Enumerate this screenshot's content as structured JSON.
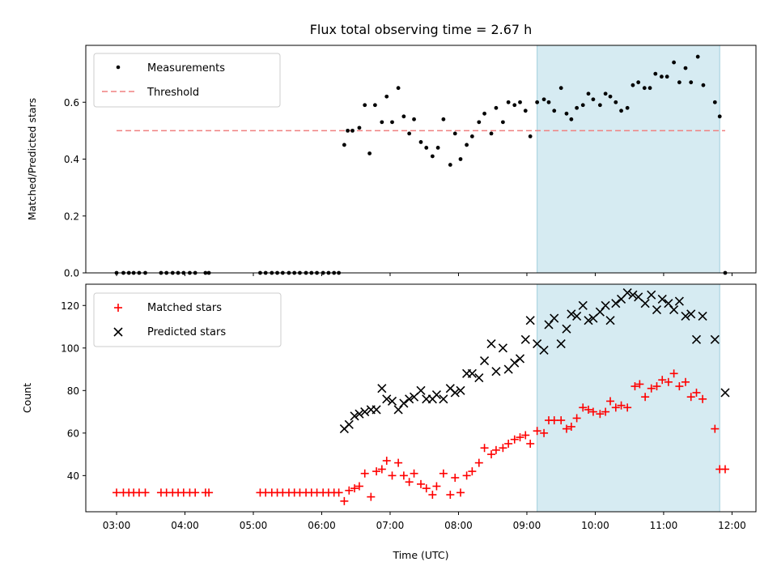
{
  "chart_data": [
    {
      "type": "scatter",
      "title": "Flux total observing time = 2.67 h",
      "xlabel": "",
      "ylabel": "Matched/Predicted stars",
      "ylim": [
        0,
        0.8
      ],
      "yticks": [
        0.0,
        0.2,
        0.4,
        0.6
      ],
      "ytick_labels": [
        "0.0",
        "0.2",
        "0.4",
        "0.6"
      ],
      "x_unit": "hours UTC",
      "xlim": [
        2.55,
        12.35
      ],
      "grid": false,
      "legend_position": "top-left",
      "highlight_span": [
        9.15,
        11.82
      ],
      "threshold": {
        "name": "Threshold",
        "value": 0.5,
        "x_range": [
          3.0,
          11.9
        ],
        "color": "#f08080"
      },
      "series": [
        {
          "name": "Measurements",
          "color": "#000000",
          "marker": "dot",
          "points": [
            [
              3.0,
              0
            ],
            [
              3.1,
              0
            ],
            [
              3.18,
              0
            ],
            [
              3.25,
              0
            ],
            [
              3.33,
              0
            ],
            [
              3.42,
              0
            ],
            [
              3.65,
              0
            ],
            [
              3.73,
              0
            ],
            [
              3.82,
              0
            ],
            [
              3.9,
              0
            ],
            [
              3.98,
              0
            ],
            [
              4.07,
              0
            ],
            [
              4.15,
              0
            ],
            [
              4.3,
              0
            ],
            [
              4.35,
              0
            ],
            [
              5.1,
              0
            ],
            [
              5.18,
              0
            ],
            [
              5.27,
              0
            ],
            [
              5.35,
              0
            ],
            [
              5.43,
              0
            ],
            [
              5.52,
              0
            ],
            [
              5.6,
              0
            ],
            [
              5.68,
              0
            ],
            [
              5.77,
              0
            ],
            [
              5.85,
              0
            ],
            [
              5.93,
              0
            ],
            [
              6.02,
              0
            ],
            [
              6.1,
              0
            ],
            [
              6.18,
              0
            ],
            [
              6.25,
              0
            ],
            [
              6.33,
              0.45
            ],
            [
              6.38,
              0.5
            ],
            [
              6.45,
              0.5
            ],
            [
              6.55,
              0.51
            ],
            [
              6.63,
              0.59
            ],
            [
              6.7,
              0.42
            ],
            [
              6.78,
              0.59
            ],
            [
              6.88,
              0.53
            ],
            [
              6.95,
              0.62
            ],
            [
              7.03,
              0.53
            ],
            [
              7.12,
              0.65
            ],
            [
              7.2,
              0.55
            ],
            [
              7.28,
              0.49
            ],
            [
              7.35,
              0.54
            ],
            [
              7.45,
              0.46
            ],
            [
              7.53,
              0.44
            ],
            [
              7.62,
              0.41
            ],
            [
              7.7,
              0.44
            ],
            [
              7.78,
              0.54
            ],
            [
              7.88,
              0.38
            ],
            [
              7.95,
              0.49
            ],
            [
              8.03,
              0.4
            ],
            [
              8.12,
              0.45
            ],
            [
              8.2,
              0.48
            ],
            [
              8.3,
              0.53
            ],
            [
              8.38,
              0.56
            ],
            [
              8.48,
              0.49
            ],
            [
              8.55,
              0.58
            ],
            [
              8.65,
              0.53
            ],
            [
              8.73,
              0.6
            ],
            [
              8.82,
              0.59
            ],
            [
              8.9,
              0.6
            ],
            [
              8.98,
              0.57
            ],
            [
              9.05,
              0.48
            ],
            [
              9.15,
              0.6
            ],
            [
              9.25,
              0.61
            ],
            [
              9.32,
              0.6
            ],
            [
              9.4,
              0.57
            ],
            [
              9.5,
              0.65
            ],
            [
              9.58,
              0.56
            ],
            [
              9.65,
              0.54
            ],
            [
              9.73,
              0.58
            ],
            [
              9.82,
              0.59
            ],
            [
              9.9,
              0.63
            ],
            [
              9.97,
              0.61
            ],
            [
              10.07,
              0.59
            ],
            [
              10.15,
              0.63
            ],
            [
              10.22,
              0.62
            ],
            [
              10.3,
              0.6
            ],
            [
              10.38,
              0.57
            ],
            [
              10.47,
              0.58
            ],
            [
              10.55,
              0.66
            ],
            [
              10.63,
              0.67
            ],
            [
              10.72,
              0.65
            ],
            [
              10.8,
              0.65
            ],
            [
              10.88,
              0.7
            ],
            [
              10.97,
              0.69
            ],
            [
              11.05,
              0.69
            ],
            [
              11.15,
              0.74
            ],
            [
              11.23,
              0.67
            ],
            [
              11.32,
              0.72
            ],
            [
              11.4,
              0.67
            ],
            [
              11.5,
              0.76
            ],
            [
              11.58,
              0.66
            ],
            [
              11.75,
              0.6
            ],
            [
              11.82,
              0.55
            ],
            [
              11.9,
              0
            ]
          ]
        }
      ]
    },
    {
      "type": "scatter",
      "xlabel": "Time (UTC)",
      "ylabel": "Count",
      "ylim": [
        23,
        130
      ],
      "yticks": [
        40,
        60,
        80,
        100,
        120
      ],
      "ytick_labels": [
        "40",
        "60",
        "80",
        "100",
        "120"
      ],
      "xticks": [
        3,
        4,
        5,
        6,
        7,
        8,
        9,
        10,
        11,
        12
      ],
      "xtick_labels": [
        "03:00",
        "04:00",
        "05:00",
        "06:00",
        "07:00",
        "08:00",
        "09:00",
        "10:00",
        "11:00",
        "12:00"
      ],
      "x_unit": "hours UTC",
      "xlim": [
        2.55,
        12.35
      ],
      "grid": false,
      "legend_position": "top-left",
      "highlight_span": [
        9.15,
        11.82
      ],
      "series": [
        {
          "name": "Matched stars",
          "color": "#ff0000",
          "marker": "plus",
          "points": [
            [
              3.0,
              32
            ],
            [
              3.1,
              32
            ],
            [
              3.18,
              32
            ],
            [
              3.25,
              32
            ],
            [
              3.33,
              32
            ],
            [
              3.42,
              32
            ],
            [
              3.65,
              32
            ],
            [
              3.73,
              32
            ],
            [
              3.82,
              32
            ],
            [
              3.9,
              32
            ],
            [
              3.98,
              32
            ],
            [
              4.07,
              32
            ],
            [
              4.15,
              32
            ],
            [
              4.3,
              32
            ],
            [
              4.35,
              32
            ],
            [
              5.1,
              32
            ],
            [
              5.18,
              32
            ],
            [
              5.27,
              32
            ],
            [
              5.35,
              32
            ],
            [
              5.43,
              32
            ],
            [
              5.52,
              32
            ],
            [
              5.6,
              32
            ],
            [
              5.68,
              32
            ],
            [
              5.77,
              32
            ],
            [
              5.85,
              32
            ],
            [
              5.93,
              32
            ],
            [
              6.02,
              32
            ],
            [
              6.1,
              32
            ],
            [
              6.18,
              32
            ],
            [
              6.25,
              32
            ],
            [
              6.33,
              28
            ],
            [
              6.4,
              33
            ],
            [
              6.48,
              34
            ],
            [
              6.55,
              35
            ],
            [
              6.63,
              41
            ],
            [
              6.72,
              30
            ],
            [
              6.8,
              42
            ],
            [
              6.88,
              43
            ],
            [
              6.95,
              47
            ],
            [
              7.03,
              40
            ],
            [
              7.12,
              46
            ],
            [
              7.2,
              40
            ],
            [
              7.28,
              37
            ],
            [
              7.35,
              41
            ],
            [
              7.45,
              36
            ],
            [
              7.53,
              34
            ],
            [
              7.62,
              31
            ],
            [
              7.68,
              35
            ],
            [
              7.78,
              41
            ],
            [
              7.88,
              31
            ],
            [
              7.95,
              39
            ],
            [
              8.03,
              32
            ],
            [
              8.12,
              40
            ],
            [
              8.2,
              42
            ],
            [
              8.3,
              46
            ],
            [
              8.38,
              53
            ],
            [
              8.48,
              50
            ],
            [
              8.55,
              52
            ],
            [
              8.65,
              53
            ],
            [
              8.73,
              55
            ],
            [
              8.82,
              57
            ],
            [
              8.9,
              58
            ],
            [
              8.98,
              59
            ],
            [
              9.05,
              55
            ],
            [
              9.15,
              61
            ],
            [
              9.25,
              60
            ],
            [
              9.32,
              66
            ],
            [
              9.4,
              66
            ],
            [
              9.5,
              66
            ],
            [
              9.58,
              62
            ],
            [
              9.65,
              63
            ],
            [
              9.73,
              67
            ],
            [
              9.82,
              72
            ],
            [
              9.9,
              71
            ],
            [
              9.97,
              70
            ],
            [
              10.07,
              69
            ],
            [
              10.15,
              70
            ],
            [
              10.22,
              75
            ],
            [
              10.3,
              72
            ],
            [
              10.38,
              73
            ],
            [
              10.47,
              72
            ],
            [
              10.58,
              82
            ],
            [
              10.65,
              83
            ],
            [
              10.73,
              77
            ],
            [
              10.82,
              81
            ],
            [
              10.9,
              82
            ],
            [
              10.98,
              85
            ],
            [
              11.07,
              84
            ],
            [
              11.15,
              88
            ],
            [
              11.23,
              82
            ],
            [
              11.32,
              84
            ],
            [
              11.4,
              77
            ],
            [
              11.48,
              79
            ],
            [
              11.57,
              76
            ],
            [
              11.75,
              62
            ],
            [
              11.82,
              43
            ],
            [
              11.9,
              43
            ]
          ]
        },
        {
          "name": "Predicted stars",
          "color": "#000000",
          "marker": "x",
          "points": [
            [
              6.33,
              62
            ],
            [
              6.4,
              64
            ],
            [
              6.48,
              68
            ],
            [
              6.55,
              69
            ],
            [
              6.63,
              70
            ],
            [
              6.72,
              71
            ],
            [
              6.8,
              71
            ],
            [
              6.88,
              81
            ],
            [
              6.95,
              76
            ],
            [
              7.03,
              75
            ],
            [
              7.12,
              71
            ],
            [
              7.2,
              74
            ],
            [
              7.28,
              76
            ],
            [
              7.35,
              77
            ],
            [
              7.45,
              80
            ],
            [
              7.53,
              76
            ],
            [
              7.62,
              76
            ],
            [
              7.68,
              78
            ],
            [
              7.78,
              76
            ],
            [
              7.88,
              81
            ],
            [
              7.95,
              79
            ],
            [
              8.03,
              80
            ],
            [
              8.12,
              88
            ],
            [
              8.2,
              88
            ],
            [
              8.3,
              86
            ],
            [
              8.38,
              94
            ],
            [
              8.48,
              102
            ],
            [
              8.55,
              89
            ],
            [
              8.65,
              100
            ],
            [
              8.73,
              90
            ],
            [
              8.82,
              93
            ],
            [
              8.9,
              95
            ],
            [
              8.98,
              104
            ],
            [
              9.05,
              113
            ],
            [
              9.15,
              102
            ],
            [
              9.25,
              99
            ],
            [
              9.32,
              111
            ],
            [
              9.4,
              114
            ],
            [
              9.5,
              102
            ],
            [
              9.58,
              109
            ],
            [
              9.65,
              116
            ],
            [
              9.73,
              115
            ],
            [
              9.82,
              120
            ],
            [
              9.9,
              113
            ],
            [
              9.97,
              114
            ],
            [
              10.07,
              117
            ],
            [
              10.15,
              120
            ],
            [
              10.22,
              113
            ],
            [
              10.3,
              121
            ],
            [
              10.38,
              123
            ],
            [
              10.47,
              126
            ],
            [
              10.55,
              125
            ],
            [
              10.63,
              124
            ],
            [
              10.73,
              121
            ],
            [
              10.82,
              125
            ],
            [
              10.9,
              118
            ],
            [
              10.98,
              123
            ],
            [
              11.07,
              121
            ],
            [
              11.15,
              118
            ],
            [
              11.23,
              122
            ],
            [
              11.32,
              115
            ],
            [
              11.4,
              116
            ],
            [
              11.48,
              104
            ],
            [
              11.57,
              115
            ],
            [
              11.75,
              104
            ],
            [
              11.9,
              79
            ]
          ]
        }
      ]
    }
  ]
}
